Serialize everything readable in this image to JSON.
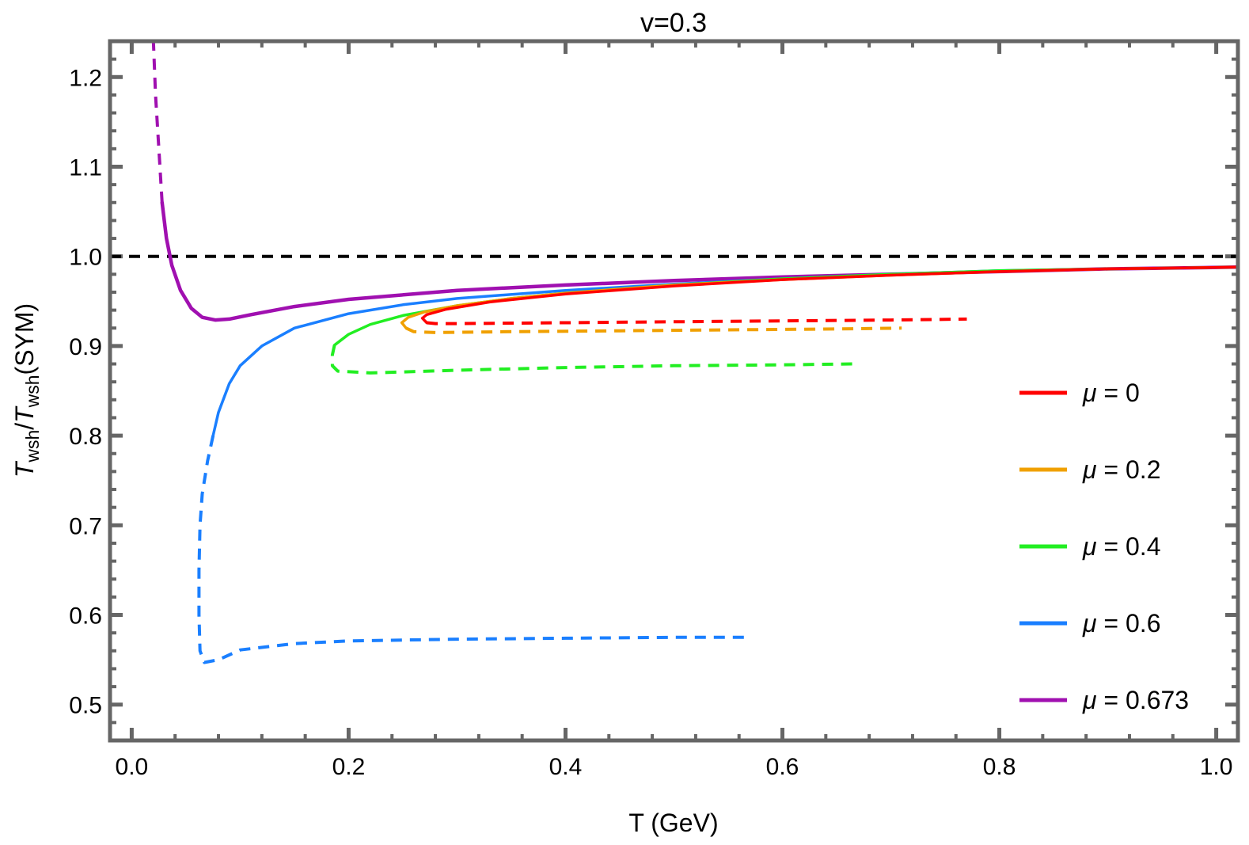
{
  "chart_data": {
    "type": "line",
    "title": "v=0.3",
    "xlabel": "T (GeV)",
    "ylabel": {
      "t1": "T",
      "s1": "wsh",
      "slash": "/",
      "t2": "T",
      "s2": "wsh",
      "tail": "(SYM)"
    },
    "xlim": [
      -0.02,
      1.02
    ],
    "ylim": [
      0.46,
      1.24
    ],
    "xticks": [
      {
        "v": 0.0,
        "label": "0.0"
      },
      {
        "v": 0.2,
        "label": "0.2"
      },
      {
        "v": 0.4,
        "label": "0.4"
      },
      {
        "v": 0.6,
        "label": "0.6"
      },
      {
        "v": 0.8,
        "label": "0.8"
      },
      {
        "v": 1.0,
        "label": "1.0"
      }
    ],
    "yticks": [
      {
        "v": 0.5,
        "label": "0.5"
      },
      {
        "v": 0.6,
        "label": "0.6"
      },
      {
        "v": 0.7,
        "label": "0.7"
      },
      {
        "v": 0.8,
        "label": "0.8"
      },
      {
        "v": 0.9,
        "label": "0.9"
      },
      {
        "v": 1.0,
        "label": "1.0"
      },
      {
        "v": 1.1,
        "label": "1.1"
      },
      {
        "v": 1.2,
        "label": "1.2"
      }
    ],
    "minor_xstep": 0.04,
    "minor_ystep": 0.02,
    "grid": false,
    "legend_position": "right",
    "reference_line": {
      "y": 1.0,
      "color": "#000000",
      "style": "dashed"
    },
    "series": [
      {
        "name": "μ = 0",
        "mu_symbol": "μ",
        "mu_value": "= 0",
        "color": "#ff0000",
        "stable": [
          [
            0.272,
            0.926
          ],
          [
            0.268,
            0.931
          ],
          [
            0.272,
            0.935
          ],
          [
            0.29,
            0.941
          ],
          [
            0.33,
            0.949
          ],
          [
            0.4,
            0.958
          ],
          [
            0.5,
            0.967
          ],
          [
            0.6,
            0.974
          ],
          [
            0.7,
            0.979
          ],
          [
            0.8,
            0.983
          ],
          [
            0.9,
            0.986
          ],
          [
            1.02,
            0.988
          ]
        ],
        "unstable": [
          [
            0.272,
            0.926
          ],
          [
            0.28,
            0.925
          ],
          [
            0.3,
            0.925
          ],
          [
            0.4,
            0.926
          ],
          [
            0.5,
            0.927
          ],
          [
            0.6,
            0.928
          ],
          [
            0.7,
            0.929
          ],
          [
            0.77,
            0.93
          ]
        ]
      },
      {
        "name": "μ = 0.2",
        "mu_symbol": "μ",
        "mu_value": "= 0.2",
        "color": "#f0a000",
        "stable": [
          [
            0.253,
            0.92
          ],
          [
            0.249,
            0.926
          ],
          [
            0.255,
            0.932
          ],
          [
            0.27,
            0.938
          ],
          [
            0.3,
            0.945
          ],
          [
            0.35,
            0.953
          ],
          [
            0.4,
            0.959
          ],
          [
            0.5,
            0.968
          ],
          [
            0.6,
            0.974
          ],
          [
            0.7,
            0.979
          ],
          [
            0.8,
            0.983
          ],
          [
            0.9,
            0.986
          ],
          [
            1.02,
            0.988
          ]
        ],
        "unstable": [
          [
            0.253,
            0.92
          ],
          [
            0.26,
            0.916
          ],
          [
            0.28,
            0.915
          ],
          [
            0.35,
            0.916
          ],
          [
            0.45,
            0.917
          ],
          [
            0.55,
            0.918
          ],
          [
            0.65,
            0.919
          ],
          [
            0.71,
            0.92
          ]
        ]
      },
      {
        "name": "μ = 0.4",
        "mu_symbol": "μ",
        "mu_value": "= 0.4",
        "color": "#22ee22",
        "stable": [
          [
            0.187,
            0.901
          ],
          [
            0.2,
            0.913
          ],
          [
            0.22,
            0.924
          ],
          [
            0.25,
            0.934
          ],
          [
            0.3,
            0.945
          ],
          [
            0.35,
            0.953
          ],
          [
            0.4,
            0.959
          ],
          [
            0.5,
            0.968
          ],
          [
            0.6,
            0.975
          ],
          [
            0.7,
            0.98
          ],
          [
            0.8,
            0.984
          ],
          [
            0.9,
            0.986
          ],
          [
            1.02,
            0.988
          ]
        ],
        "unstable": [
          [
            0.187,
            0.901
          ],
          [
            0.185,
            0.89
          ],
          [
            0.185,
            0.878
          ],
          [
            0.19,
            0.872
          ],
          [
            0.22,
            0.87
          ],
          [
            0.3,
            0.873
          ],
          [
            0.4,
            0.876
          ],
          [
            0.5,
            0.878
          ],
          [
            0.6,
            0.879
          ],
          [
            0.665,
            0.88
          ]
        ]
      },
      {
        "name": "μ = 0.6",
        "mu_symbol": "μ",
        "mu_value": "= 0.6",
        "color": "#1a7fff",
        "stable": [
          [
            0.075,
            0.8
          ],
          [
            0.08,
            0.826
          ],
          [
            0.09,
            0.858
          ],
          [
            0.1,
            0.878
          ],
          [
            0.12,
            0.9
          ],
          [
            0.15,
            0.92
          ],
          [
            0.2,
            0.936
          ],
          [
            0.25,
            0.946
          ],
          [
            0.3,
            0.953
          ],
          [
            0.4,
            0.962
          ],
          [
            0.5,
            0.969
          ],
          [
            0.6,
            0.975
          ],
          [
            0.7,
            0.98
          ],
          [
            0.8,
            0.984
          ],
          [
            0.9,
            0.986
          ],
          [
            1.02,
            0.988
          ]
        ],
        "unstable": [
          [
            0.075,
            0.8
          ],
          [
            0.07,
            0.772
          ],
          [
            0.065,
            0.735
          ],
          [
            0.063,
            0.7
          ],
          [
            0.062,
            0.65
          ],
          [
            0.062,
            0.6
          ],
          [
            0.063,
            0.56
          ],
          [
            0.067,
            0.547
          ],
          [
            0.08,
            0.55
          ],
          [
            0.1,
            0.561
          ],
          [
            0.15,
            0.568
          ],
          [
            0.2,
            0.571
          ],
          [
            0.3,
            0.573
          ],
          [
            0.4,
            0.574
          ],
          [
            0.5,
            0.575
          ],
          [
            0.57,
            0.575
          ]
        ]
      },
      {
        "name": "μ = 0.673",
        "mu_symbol": "μ",
        "mu_value": "= 0.673",
        "color": "#a010b0",
        "stable": [
          [
            0.028,
            1.06
          ],
          [
            0.032,
            1.02
          ],
          [
            0.037,
            0.99
          ],
          [
            0.045,
            0.962
          ],
          [
            0.055,
            0.942
          ],
          [
            0.065,
            0.932
          ],
          [
            0.077,
            0.929
          ],
          [
            0.09,
            0.93
          ],
          [
            0.11,
            0.935
          ],
          [
            0.15,
            0.944
          ],
          [
            0.2,
            0.952
          ],
          [
            0.3,
            0.962
          ],
          [
            0.4,
            0.968
          ],
          [
            0.5,
            0.973
          ],
          [
            0.6,
            0.977
          ],
          [
            0.7,
            0.98
          ],
          [
            0.8,
            0.983
          ],
          [
            0.9,
            0.986
          ],
          [
            1.02,
            0.988
          ]
        ],
        "unstable": [
          [
            0.028,
            1.06
          ],
          [
            0.025,
            1.12
          ],
          [
            0.022,
            1.18
          ],
          [
            0.02,
            1.24
          ]
        ]
      }
    ]
  }
}
